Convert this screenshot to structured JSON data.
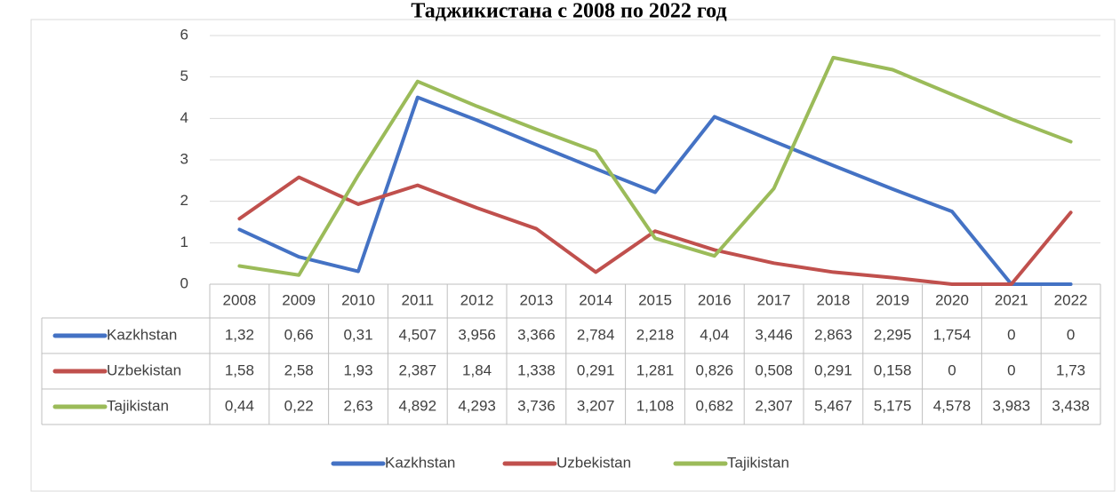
{
  "chart_data": {
    "type": "line",
    "title": "Таджикистана с 2008 по 2022 год",
    "categories": [
      "2008",
      "2009",
      "2010",
      "2011",
      "2012",
      "2013",
      "2014",
      "2015",
      "2016",
      "2017",
      "2018",
      "2019",
      "2020",
      "2021",
      "2022"
    ],
    "series": [
      {
        "name": "Kazkhstan",
        "color": "#4472c4",
        "values": [
          1.32,
          0.66,
          0.31,
          4.507,
          3.956,
          3.366,
          2.784,
          2.218,
          4.04,
          3.446,
          2.863,
          2.295,
          1.754,
          0,
          0
        ],
        "value_labels": [
          "1,32",
          "0,66",
          "0,31",
          "4,507",
          "3,956",
          "3,366",
          "2,784",
          "2,218",
          "4,04",
          "3,446",
          "2,863",
          "2,295",
          "1,754",
          "0",
          "0"
        ]
      },
      {
        "name": "Uzbekistan",
        "color": "#c0504d",
        "values": [
          1.58,
          2.58,
          1.93,
          2.387,
          1.84,
          1.338,
          0.291,
          1.281,
          0.826,
          0.508,
          0.291,
          0.158,
          0,
          0,
          1.73
        ],
        "value_labels": [
          "1,58",
          "2,58",
          "1,93",
          "2,387",
          "1,84",
          "1,338",
          "0,291",
          "1,281",
          "0,826",
          "0,508",
          "0,291",
          "0,158",
          "0",
          "0",
          "1,73"
        ]
      },
      {
        "name": "Tajikistan",
        "color": "#9bbb59",
        "values": [
          0.44,
          0.22,
          2.63,
          4.892,
          4.293,
          3.736,
          3.207,
          1.108,
          0.682,
          2.307,
          5.467,
          5.175,
          4.578,
          3.983,
          3.438
        ],
        "value_labels": [
          "0,44",
          "0,22",
          "2,63",
          "4,892",
          "4,293",
          "3,736",
          "3,207",
          "1,108",
          "0,682",
          "2,307",
          "5,467",
          "5,175",
          "4,578",
          "3,983",
          "3,438"
        ]
      }
    ],
    "ylim": [
      0,
      6
    ],
    "yticks": [
      0,
      1,
      2,
      3,
      4,
      5,
      6
    ],
    "grid": true,
    "legend": "bottom"
  }
}
